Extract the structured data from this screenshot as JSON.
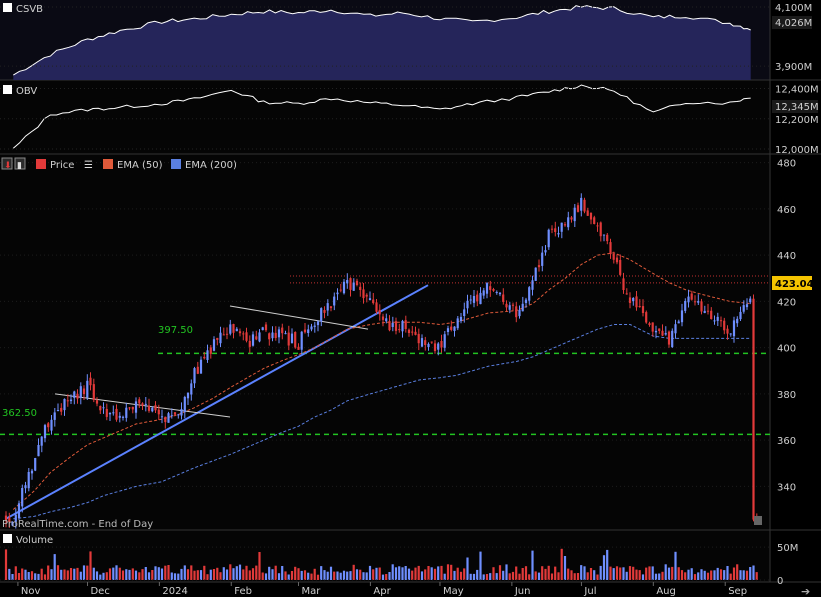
{
  "panels": {
    "csvb": {
      "name": "CSVB",
      "last_label": "4,026M",
      "ticks": [
        "4,100M",
        "3,900M"
      ]
    },
    "obv": {
      "name": "OBV",
      "last_label": "12,345M",
      "ticks": [
        "12,400M",
        "12,200M",
        "12,000M"
      ]
    },
    "price": {
      "legend": [
        "Price",
        "EMA (50)",
        "EMA (200)"
      ],
      "last_label": "423.04",
      "ticks": [
        "480",
        "460",
        "440",
        "420",
        "400",
        "380",
        "360",
        "340"
      ],
      "levels": [
        {
          "label": "397.50",
          "value": 397.5
        },
        {
          "label": "362.50",
          "value": 362.5
        }
      ],
      "footer": "ProRealTime.com - End of Day"
    },
    "volume": {
      "name": "Volume",
      "ticks": [
        "50M",
        "0"
      ]
    }
  },
  "months": [
    "Nov",
    "Dec",
    "2024",
    "Feb",
    "Mar",
    "Apr",
    "May",
    "Jun",
    "Jul",
    "Aug",
    "Sep"
  ],
  "colors": {
    "up": "#6f8fff",
    "down": "#e23a3a",
    "ema50": "#e05a3a",
    "ema200": "#5a7fe0",
    "level": "#22c422",
    "trend": "#5b82ff",
    "csvb_fill": "#25255a",
    "resistance": "#c03030"
  },
  "chart_data": [
    {
      "type": "line",
      "title": "CSVB",
      "x": [
        "2023-10-30",
        "2023-11-15",
        "2023-12-01",
        "2023-12-15",
        "2024-01-02",
        "2024-01-16",
        "2024-02-01",
        "2024-02-15",
        "2024-03-01",
        "2024-03-15",
        "2024-04-01",
        "2024-04-15",
        "2024-05-01",
        "2024-05-15",
        "2024-06-03",
        "2024-06-17",
        "2024-07-01",
        "2024-07-15",
        "2024-08-01",
        "2024-08-15",
        "2024-09-03",
        "2024-09-12"
      ],
      "series": [
        {
          "values": [
            3870,
            3940,
            3990,
            4020,
            4050,
            4060,
            4075,
            4085,
            4080,
            4090,
            4070,
            4080,
            4060,
            4050,
            4065,
            4085,
            4100,
            4095,
            4065,
            4070,
            4045,
            4026
          ]
        }
      ],
      "ylim": [
        3860,
        4110
      ]
    },
    {
      "type": "line",
      "title": "OBV",
      "x": [
        "2023-10-30",
        "2023-11-15",
        "2023-12-01",
        "2023-12-15",
        "2024-01-02",
        "2024-01-16",
        "2024-02-01",
        "2024-02-15",
        "2024-03-01",
        "2024-03-15",
        "2024-04-01",
        "2024-04-15",
        "2024-05-01",
        "2024-05-15",
        "2024-06-03",
        "2024-06-17",
        "2024-07-01",
        "2024-07-15",
        "2024-08-01",
        "2024-08-15",
        "2024-09-03",
        "2024-09-12"
      ],
      "series": [
        {
          "values": [
            12000,
            12230,
            12260,
            12275,
            12300,
            12330,
            12390,
            12310,
            12300,
            12335,
            12305,
            12290,
            12260,
            12300,
            12340,
            12380,
            12420,
            12385,
            12240,
            12310,
            12305,
            12345
          ]
        }
      ],
      "ylim": [
        11980,
        12430
      ]
    },
    {
      "type": "line",
      "title": "Price",
      "x": [
        "2023-10-30",
        "2023-11-08",
        "2023-11-15",
        "2023-11-24",
        "2023-12-01",
        "2023-12-08",
        "2023-12-15",
        "2023-12-22",
        "2024-01-02",
        "2024-01-09",
        "2024-01-16",
        "2024-01-24",
        "2024-02-01",
        "2024-02-08",
        "2024-02-15",
        "2024-02-22",
        "2024-03-01",
        "2024-03-08",
        "2024-03-15",
        "2024-03-22",
        "2024-04-01",
        "2024-04-08",
        "2024-04-15",
        "2024-04-22",
        "2024-05-01",
        "2024-05-08",
        "2024-05-15",
        "2024-05-22",
        "2024-06-03",
        "2024-06-10",
        "2024-06-17",
        "2024-06-24",
        "2024-07-01",
        "2024-07-08",
        "2024-07-15",
        "2024-07-22",
        "2024-08-01",
        "2024-08-08",
        "2024-08-15",
        "2024-08-22",
        "2024-09-03",
        "2024-09-12"
      ],
      "series": [
        {
          "name": "Price",
          "values": [
            326,
            352,
            371,
            377,
            383,
            372,
            371,
            375,
            370,
            372,
            388,
            401,
            408,
            402,
            407,
            405,
            402,
            412,
            420,
            427,
            421,
            410,
            410,
            404,
            400,
            413,
            420,
            426,
            415,
            428,
            449,
            454,
            463,
            452,
            437,
            421,
            407,
            404,
            420,
            418,
            407,
            423
          ]
        },
        {
          "name": "EMA (50)",
          "values": [
            330,
            338,
            346,
            353,
            358,
            361,
            364,
            367,
            369,
            371,
            374,
            378,
            383,
            387,
            391,
            394,
            397,
            400,
            404,
            408,
            410,
            411,
            411,
            411,
            410,
            411,
            413,
            415,
            416,
            419,
            425,
            430,
            436,
            440,
            441,
            438,
            432,
            428,
            425,
            423,
            420,
            419
          ]
        },
        {
          "name": "EMA (200)",
          "values": [
            326,
            327,
            329,
            331,
            333,
            336,
            338,
            340,
            342,
            345,
            348,
            351,
            354,
            357,
            360,
            363,
            366,
            370,
            373,
            377,
            380,
            382,
            384,
            386,
            387,
            388,
            390,
            392,
            394,
            396,
            399,
            402,
            405,
            408,
            410,
            410,
            405,
            404,
            404,
            404,
            404,
            404
          ]
        }
      ],
      "ylim": [
        322,
        482
      ]
    },
    {
      "type": "bar",
      "title": "Volume",
      "categories": [
        "Nov",
        "Dec",
        "2024",
        "Feb",
        "Mar",
        "Apr",
        "May",
        "Jun",
        "Jul",
        "Aug",
        "Sep"
      ],
      "values": [
        15,
        18,
        40,
        14,
        13,
        14,
        14,
        15,
        13,
        25,
        14
      ],
      "ylim": [
        0,
        70
      ]
    }
  ]
}
